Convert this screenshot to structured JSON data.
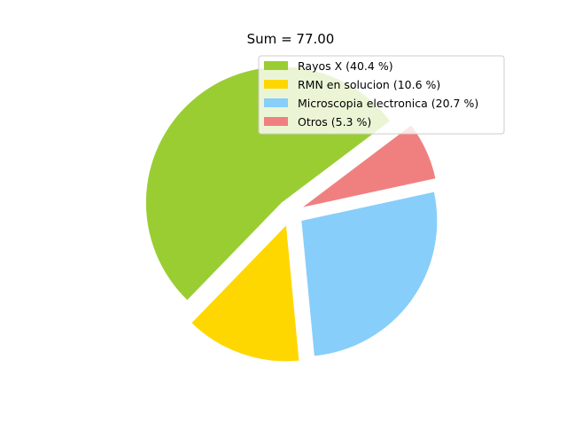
{
  "chart_data": {
    "type": "pie",
    "title": "Sum = 77.00",
    "slices": [
      {
        "label": "Rayos X (40.4 %)",
        "value": 40.4,
        "color": "#9acd32"
      },
      {
        "label": "RMN en solucion (10.6 %)",
        "value": 10.6,
        "color": "#ffd700"
      },
      {
        "label": "Microscopia electronica (20.7 %)",
        "value": 20.7,
        "color": "#87cefa"
      },
      {
        "label": "Otros (5.3 %)",
        "value": 5.3,
        "color": "#f08080"
      }
    ],
    "legend_position": "upper-right",
    "exploded": true
  }
}
